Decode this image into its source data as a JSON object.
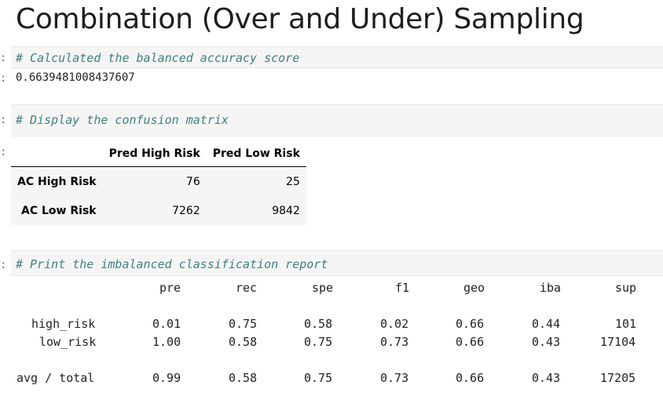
{
  "heading": "Combination (Over and Under) Sampling",
  "cells": {
    "accuracy_comment": "# Calculated the balanced accuracy score",
    "accuracy_value": "0.6639481008437607",
    "matrix_comment": "# Display the confusion matrix",
    "report_comment": "# Print the imbalanced classification report"
  },
  "prompt_marker": ":",
  "confusion_matrix": {
    "columns": [
      "Pred High Risk",
      "Pred Low Risk"
    ],
    "rows": [
      {
        "label": "AC High Risk",
        "values": [
          "76",
          "25"
        ]
      },
      {
        "label": "AC Low Risk",
        "values": [
          "7262",
          "9842"
        ]
      }
    ]
  },
  "report": {
    "headers": [
      "pre",
      "rec",
      "spe",
      "f1",
      "geo",
      "iba",
      "sup"
    ],
    "rows": [
      {
        "label": "high_risk",
        "values": [
          "0.01",
          "0.75",
          "0.58",
          "0.02",
          "0.66",
          "0.44",
          "101"
        ]
      },
      {
        "label": "low_risk",
        "values": [
          "1.00",
          "0.58",
          "0.75",
          "0.73",
          "0.66",
          "0.43",
          "17104"
        ]
      },
      {
        "label": "avg / total",
        "values": [
          "0.99",
          "0.58",
          "0.75",
          "0.73",
          "0.66",
          "0.43",
          "17205"
        ]
      }
    ]
  }
}
